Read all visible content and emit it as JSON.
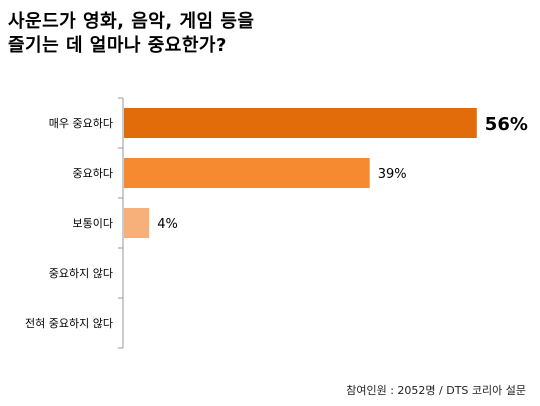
{
  "chart_data": {
    "type": "bar",
    "orientation": "horizontal",
    "title_lines": [
      "사운드가 영화, 음악, 게임 등을",
      "즐기는 데 얼마나 중요한가?"
    ],
    "categories": [
      "매우 중요하다",
      "중요하다",
      "보통이다",
      "중요하지 않다",
      "전혀 중요하지 않다"
    ],
    "values": [
      56,
      39,
      4,
      0,
      0
    ],
    "value_labels": [
      "56%",
      "39%",
      "4%",
      "",
      ""
    ],
    "bar_colors": [
      "#E36C0A",
      "#F58A30",
      "#F7B07A",
      "#F7B07A",
      "#F7B07A"
    ],
    "unit": "%",
    "source": "참여인원 : 2052명 / DTS 코리아 설문"
  }
}
